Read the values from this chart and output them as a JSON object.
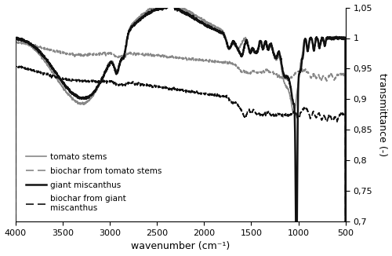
{
  "xlabel": "wavenumber (cm⁻¹)",
  "ylabel": "transmittance (-)",
  "xlim": [
    4000,
    500
  ],
  "ylim": [
    0.7,
    1.05
  ],
  "yticks": [
    0.7,
    0.75,
    0.8,
    0.85,
    0.9,
    0.95,
    1.0,
    1.05
  ],
  "ytick_labels": [
    "0,7",
    "0,75",
    "0,8",
    "0,85",
    "0,9",
    "0,95",
    "1",
    "1,05"
  ],
  "xticks": [
    4000,
    3500,
    3000,
    2500,
    2000,
    1500,
    1000,
    500
  ],
  "legend": [
    {
      "label": "tomato stems",
      "color": "#888888",
      "lw": 1.2,
      "ls": "solid"
    },
    {
      "label": "biochar from tomato stems",
      "color": "#888888",
      "lw": 1.2,
      "ls": "dashed"
    },
    {
      "label": "giant miscanthus",
      "color": "#111111",
      "lw": 1.8,
      "ls": "solid"
    },
    {
      "label": "biochar from giant\nmiscanthus",
      "color": "#111111",
      "lw": 1.2,
      "ls": "dashed"
    }
  ],
  "background_color": "#ffffff"
}
